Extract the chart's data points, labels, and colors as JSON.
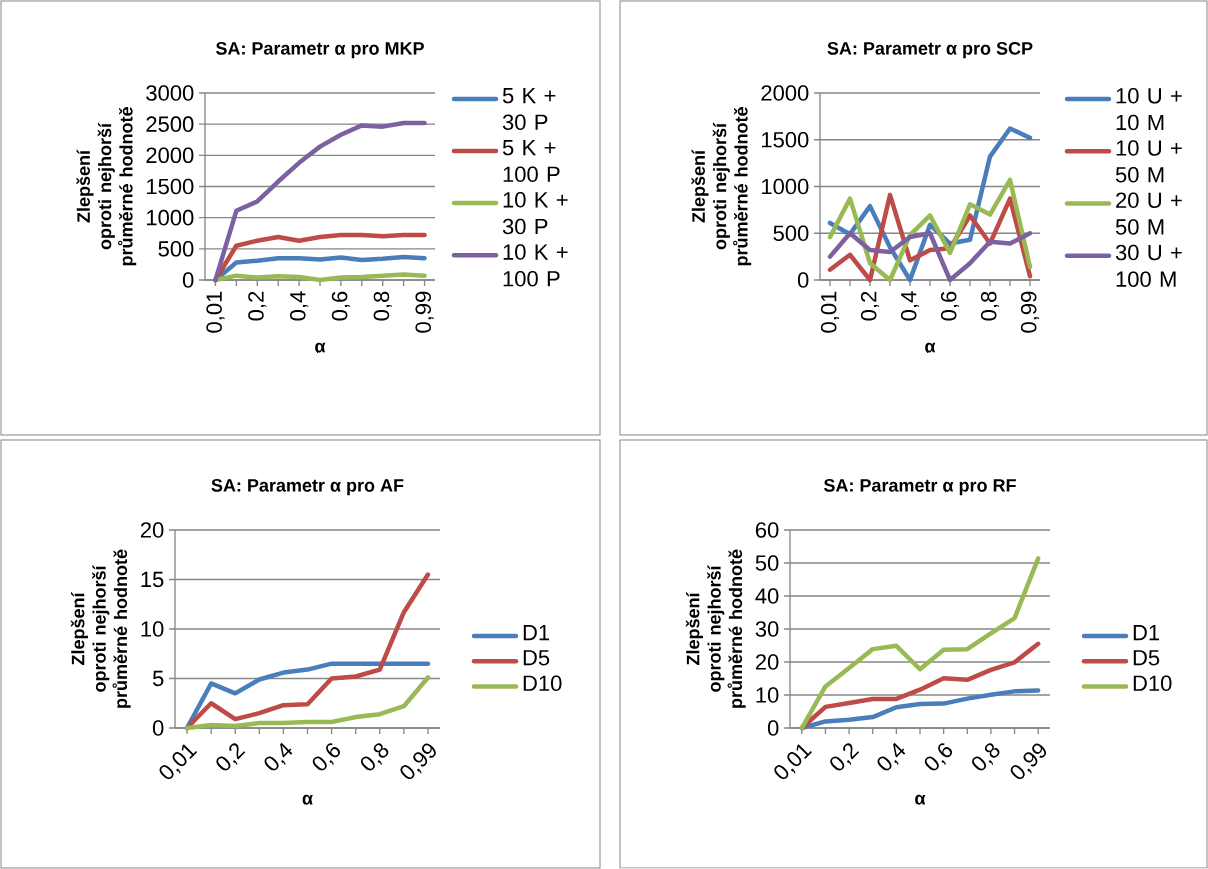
{
  "chart_data": [
    {
      "type": "line",
      "title": "SA: Parametr α pro MKP",
      "xlabel": "α",
      "ylabel": "Zlepšení oproti nejhorší průměrné hodnotě",
      "categories": [
        "0,01",
        null,
        "0,2",
        null,
        "0,4",
        null,
        "0,6",
        null,
        "0,8",
        null,
        "0,99"
      ],
      "ylim": [
        0,
        3000
      ],
      "yticks": [
        0,
        500,
        1000,
        1500,
        2000,
        2500,
        3000
      ],
      "grid": "y",
      "legend": "right",
      "series": [
        {
          "name": "5 K + 30 P",
          "color": "#4a7ebb",
          "values": [
            0,
            280,
            310,
            350,
            350,
            330,
            360,
            320,
            340,
            370,
            350
          ]
        },
        {
          "name": "5 K + 100 P",
          "color": "#be4b48",
          "values": [
            0,
            550,
            630,
            690,
            630,
            690,
            720,
            720,
            700,
            720,
            720
          ]
        },
        {
          "name": "10 K + 30 P",
          "color": "#98b954",
          "values": [
            0,
            70,
            40,
            60,
            50,
            0,
            40,
            50,
            70,
            90,
            70
          ]
        },
        {
          "name": "10 K + 100 P",
          "color": "#7d60a0",
          "values": [
            0,
            1110,
            1260,
            1580,
            1880,
            2140,
            2330,
            2480,
            2460,
            2520,
            2520
          ]
        }
      ]
    },
    {
      "type": "line",
      "title": "SA: Parametr α pro SCP",
      "xlabel": "α",
      "ylabel": "Zlepšení oproti nejhorší průměrné hodnotě",
      "categories": [
        "0,01",
        null,
        "0,2",
        null,
        "0,4",
        null,
        "0,6",
        null,
        "0,8",
        null,
        "0,99"
      ],
      "ylim": [
        0,
        2000
      ],
      "yticks": [
        0,
        500,
        1000,
        1500,
        2000
      ],
      "grid": "y",
      "legend": "right",
      "series": [
        {
          "name": "10 U + 10 M",
          "color": "#4a7ebb",
          "values": [
            610,
            490,
            790,
            350,
            0,
            590,
            390,
            430,
            1320,
            1620,
            1520
          ]
        },
        {
          "name": "10 U + 50 M",
          "color": "#be4b48",
          "values": [
            110,
            270,
            0,
            910,
            210,
            320,
            340,
            690,
            390,
            870,
            40
          ]
        },
        {
          "name": "20 U + 50 M",
          "color": "#98b954",
          "values": [
            460,
            870,
            180,
            0,
            480,
            690,
            290,
            810,
            700,
            1070,
            140
          ]
        },
        {
          "name": "30 U + 100 M",
          "color": "#7d60a0",
          "values": [
            250,
            500,
            320,
            300,
            460,
            500,
            0,
            180,
            410,
            390,
            500
          ]
        }
      ]
    },
    {
      "type": "line",
      "title": "SA: Parametr α pro AF",
      "xlabel": "α",
      "ylabel": "Zlepšení oproti nejhorší průměrné hodnotě",
      "categories": [
        "0,01",
        null,
        "0,2",
        null,
        "0,4",
        null,
        "0,6",
        null,
        "0,8",
        null,
        "0,99"
      ],
      "ylim": [
        0,
        20
      ],
      "yticks": [
        0,
        5,
        10,
        15,
        20
      ],
      "grid": "y",
      "legend": "right",
      "series": [
        {
          "name": "D1",
          "color": "#4a7ebb",
          "values": [
            0,
            4.5,
            3.5,
            4.9,
            5.6,
            5.9,
            6.5,
            6.5,
            6.5,
            6.5,
            6.5
          ]
        },
        {
          "name": "D5",
          "color": "#be4b48",
          "values": [
            0,
            2.5,
            0.9,
            1.5,
            2.3,
            2.4,
            5.0,
            5.2,
            5.9,
            11.7,
            15.5
          ]
        },
        {
          "name": "D10",
          "color": "#98b954",
          "values": [
            0,
            0.3,
            0.2,
            0.5,
            0.5,
            0.6,
            0.6,
            1.1,
            1.4,
            2.2,
            5.1
          ]
        }
      ]
    },
    {
      "type": "line",
      "title": "SA: Parametr α pro RF",
      "xlabel": "α",
      "ylabel": "Zlepšení oproti nejhorší průměrné hodnotě",
      "categories": [
        "0,01",
        null,
        "0,2",
        null,
        "0,4",
        null,
        "0,6",
        null,
        "0,8",
        null,
        "0,99"
      ],
      "ylim": [
        0,
        60
      ],
      "yticks": [
        0,
        10,
        20,
        30,
        40,
        50,
        60
      ],
      "grid": "y",
      "legend": "right",
      "series": [
        {
          "name": "D1",
          "color": "#4a7ebb",
          "values": [
            0,
            2.0,
            2.5,
            3.3,
            6.3,
            7.3,
            7.4,
            8.9,
            10.1,
            11.1,
            11.4
          ]
        },
        {
          "name": "D5",
          "color": "#be4b48",
          "values": [
            0,
            6.4,
            7.6,
            8.8,
            8.8,
            11.6,
            15.1,
            14.6,
            17.6,
            19.9,
            25.5
          ]
        },
        {
          "name": "D10",
          "color": "#98b954",
          "values": [
            0,
            12.6,
            18.2,
            23.9,
            24.9,
            17.8,
            23.7,
            23.9,
            28.7,
            33.3,
            51.4
          ]
        }
      ]
    }
  ]
}
